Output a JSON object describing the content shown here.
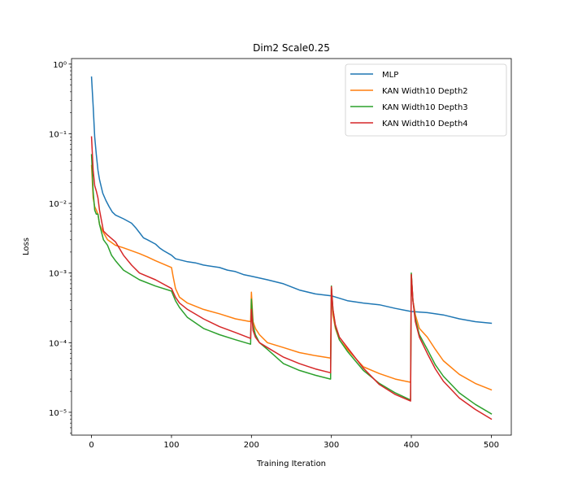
{
  "chart_data": {
    "type": "line",
    "title": "Dim2 Scale0.25",
    "xlabel": "Training Iteration",
    "ylabel": "Loss",
    "xlim": [
      -25,
      525
    ],
    "ylim": [
      4.7e-06,
      1.2
    ],
    "yscale": "log",
    "grid": false,
    "legend_position": "top-right",
    "x_ticks": [
      0,
      100,
      200,
      300,
      400,
      500
    ],
    "x_tick_labels": [
      "0",
      "100",
      "200",
      "300",
      "400",
      "500"
    ],
    "y_ticks": [
      1e-05,
      0.0001,
      0.001,
      0.01,
      0.1,
      1
    ],
    "y_tick_labels": [
      "10⁻⁵",
      "10⁻⁴",
      "10⁻³",
      "10⁻²",
      "10⁻¹",
      "10⁰"
    ],
    "series": [
      {
        "name": "MLP",
        "color": "#1f77b4",
        "points": [
          [
            0,
            0.65
          ],
          [
            2,
            0.25
          ],
          [
            4,
            0.09
          ],
          [
            6,
            0.05
          ],
          [
            8,
            0.03
          ],
          [
            10,
            0.022
          ],
          [
            14,
            0.014
          ],
          [
            18,
            0.011
          ],
          [
            22,
            0.009
          ],
          [
            26,
            0.0075
          ],
          [
            30,
            0.0068
          ],
          [
            40,
            0.006
          ],
          [
            50,
            0.0052
          ],
          [
            55,
            0.0045
          ],
          [
            60,
            0.0038
          ],
          [
            65,
            0.0032
          ],
          [
            70,
            0.003
          ],
          [
            80,
            0.0026
          ],
          [
            85,
            0.0023
          ],
          [
            90,
            0.0021
          ],
          [
            100,
            0.0018
          ],
          [
            105,
            0.0016
          ],
          [
            120,
            0.00145
          ],
          [
            130,
            0.0014
          ],
          [
            140,
            0.0013
          ],
          [
            160,
            0.0012
          ],
          [
            170,
            0.0011
          ],
          [
            180,
            0.00105
          ],
          [
            190,
            0.00095
          ],
          [
            200,
            0.0009
          ],
          [
            220,
            0.0008
          ],
          [
            240,
            0.0007
          ],
          [
            260,
            0.00057
          ],
          [
            280,
            0.0005
          ],
          [
            300,
            0.00047
          ],
          [
            320,
            0.0004
          ],
          [
            340,
            0.00037
          ],
          [
            360,
            0.00035
          ],
          [
            380,
            0.00031
          ],
          [
            400,
            0.00028
          ],
          [
            420,
            0.00027
          ],
          [
            440,
            0.00025
          ],
          [
            460,
            0.00022
          ],
          [
            480,
            0.0002
          ],
          [
            500,
            0.00019
          ]
        ]
      },
      {
        "name": "KAN Width10 Depth2",
        "color": "#ff7f0e",
        "points": [
          [
            0,
            0.035
          ],
          [
            2,
            0.012
          ],
          [
            4,
            0.009
          ],
          [
            6,
            0.008
          ],
          [
            8,
            0.007
          ],
          [
            10,
            0.005
          ],
          [
            15,
            0.0038
          ],
          [
            20,
            0.003
          ],
          [
            30,
            0.0025
          ],
          [
            40,
            0.0023
          ],
          [
            60,
            0.0019
          ],
          [
            70,
            0.0017
          ],
          [
            80,
            0.0015
          ],
          [
            100,
            0.0012
          ],
          [
            102,
            0.0009
          ],
          [
            105,
            0.0006
          ],
          [
            110,
            0.00045
          ],
          [
            120,
            0.00037
          ],
          [
            140,
            0.0003
          ],
          [
            160,
            0.00026
          ],
          [
            180,
            0.00022
          ],
          [
            199,
            0.0002
          ],
          [
            200,
            0.00053
          ],
          [
            202,
            0.0002
          ],
          [
            205,
            0.00016
          ],
          [
            210,
            0.00013
          ],
          [
            220,
            0.0001
          ],
          [
            240,
            8.5e-05
          ],
          [
            260,
            7.2e-05
          ],
          [
            280,
            6.5e-05
          ],
          [
            299,
            6e-05
          ],
          [
            300,
            0.00065
          ],
          [
            302,
            0.00025
          ],
          [
            305,
            0.00016
          ],
          [
            310,
            0.00011
          ],
          [
            320,
            8e-05
          ],
          [
            340,
            4.5e-05
          ],
          [
            360,
            3.6e-05
          ],
          [
            380,
            3e-05
          ],
          [
            399,
            2.7e-05
          ],
          [
            400,
            0.00095
          ],
          [
            402,
            0.0004
          ],
          [
            405,
            0.00025
          ],
          [
            410,
            0.00016
          ],
          [
            420,
            0.00012
          ],
          [
            430,
            8e-05
          ],
          [
            440,
            5.5e-05
          ],
          [
            460,
            3.5e-05
          ],
          [
            480,
            2.6e-05
          ],
          [
            500,
            2.1e-05
          ]
        ]
      },
      {
        "name": "KAN Width10 Depth3",
        "color": "#2ca02c",
        "points": [
          [
            0,
            0.05
          ],
          [
            2,
            0.015
          ],
          [
            4,
            0.008
          ],
          [
            6,
            0.007
          ],
          [
            8,
            0.007
          ],
          [
            10,
            0.005
          ],
          [
            15,
            0.003
          ],
          [
            20,
            0.0025
          ],
          [
            25,
            0.0018
          ],
          [
            30,
            0.0015
          ],
          [
            40,
            0.0011
          ],
          [
            60,
            0.0008
          ],
          [
            80,
            0.00065
          ],
          [
            100,
            0.00055
          ],
          [
            105,
            0.0004
          ],
          [
            110,
            0.00032
          ],
          [
            120,
            0.00023
          ],
          [
            140,
            0.00016
          ],
          [
            160,
            0.00013
          ],
          [
            180,
            0.00011
          ],
          [
            199,
            9.5e-05
          ],
          [
            200,
            0.00042
          ],
          [
            202,
            0.00018
          ],
          [
            205,
            0.00013
          ],
          [
            210,
            0.0001
          ],
          [
            220,
            8e-05
          ],
          [
            240,
            5e-05
          ],
          [
            260,
            4e-05
          ],
          [
            280,
            3.4e-05
          ],
          [
            299,
            3e-05
          ],
          [
            300,
            0.00065
          ],
          [
            302,
            0.0003
          ],
          [
            305,
            0.00017
          ],
          [
            310,
            0.00011
          ],
          [
            320,
            7.5e-05
          ],
          [
            340,
            4e-05
          ],
          [
            360,
            2.6e-05
          ],
          [
            380,
            1.9e-05
          ],
          [
            399,
            1.5e-05
          ],
          [
            400,
            0.001
          ],
          [
            402,
            0.0004
          ],
          [
            405,
            0.00022
          ],
          [
            410,
            0.00013
          ],
          [
            420,
            8e-05
          ],
          [
            430,
            4.8e-05
          ],
          [
            440,
            3.3e-05
          ],
          [
            460,
            1.9e-05
          ],
          [
            480,
            1.3e-05
          ],
          [
            500,
            9.5e-06
          ]
        ]
      },
      {
        "name": "KAN Width10 Depth4",
        "color": "#d62728",
        "points": [
          [
            0,
            0.09
          ],
          [
            2,
            0.03
          ],
          [
            4,
            0.018
          ],
          [
            6,
            0.015
          ],
          [
            8,
            0.012
          ],
          [
            10,
            0.008
          ],
          [
            15,
            0.004
          ],
          [
            20,
            0.0035
          ],
          [
            30,
            0.0028
          ],
          [
            40,
            0.0018
          ],
          [
            50,
            0.0013
          ],
          [
            60,
            0.001
          ],
          [
            80,
            0.0008
          ],
          [
            100,
            0.0006
          ],
          [
            105,
            0.00045
          ],
          [
            110,
            0.00037
          ],
          [
            120,
            0.0003
          ],
          [
            140,
            0.00022
          ],
          [
            160,
            0.00017
          ],
          [
            180,
            0.00014
          ],
          [
            199,
            0.000115
          ],
          [
            200,
            0.0003
          ],
          [
            202,
            0.00015
          ],
          [
            205,
            0.00012
          ],
          [
            210,
            0.0001
          ],
          [
            220,
            8.5e-05
          ],
          [
            240,
            6.2e-05
          ],
          [
            260,
            5e-05
          ],
          [
            280,
            4.2e-05
          ],
          [
            299,
            3.7e-05
          ],
          [
            300,
            0.00063
          ],
          [
            302,
            0.0003
          ],
          [
            305,
            0.00018
          ],
          [
            310,
            0.00012
          ],
          [
            320,
            8.5e-05
          ],
          [
            340,
            4.3e-05
          ],
          [
            360,
            2.5e-05
          ],
          [
            380,
            1.8e-05
          ],
          [
            399,
            1.45e-05
          ],
          [
            400,
            0.00095
          ],
          [
            402,
            0.0004
          ],
          [
            405,
            0.0002
          ],
          [
            410,
            0.00012
          ],
          [
            420,
            7e-05
          ],
          [
            430,
            4.2e-05
          ],
          [
            440,
            2.8e-05
          ],
          [
            460,
            1.6e-05
          ],
          [
            480,
            1.1e-05
          ],
          [
            500,
            8e-06
          ]
        ]
      }
    ]
  }
}
